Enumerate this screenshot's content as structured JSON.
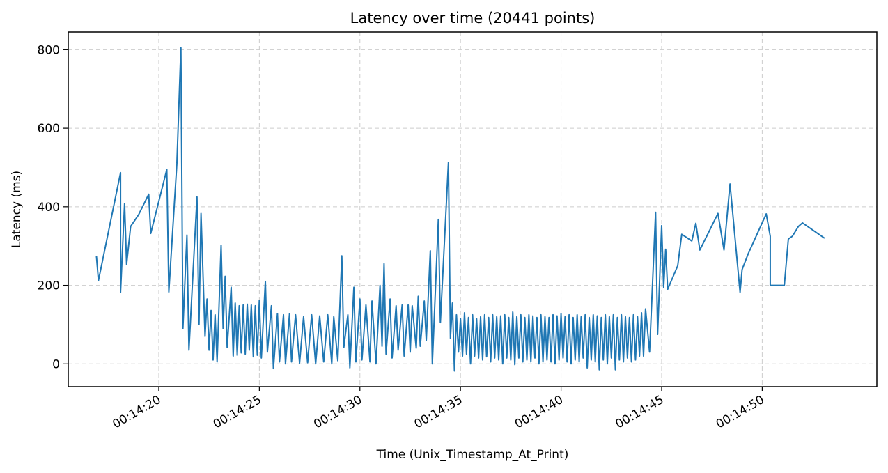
{
  "chart_data": {
    "type": "line",
    "title": "Latency over time (20441 points)",
    "xlabel": "Time (Unix_Timestamp_At_Print)",
    "ylabel": "Latency (ms)",
    "xlim": [
      "00:14:15.5",
      "00:14:55.7"
    ],
    "ylim": [
      -58,
      845
    ],
    "grid": true,
    "grid_style": "dashed",
    "line_color": "#1f77b4",
    "x_ticks": [
      {
        "t": "00:14:20",
        "label": "00:14:20"
      },
      {
        "t": "00:14:25",
        "label": "00:14:25"
      },
      {
        "t": "00:14:30",
        "label": "00:14:30"
      },
      {
        "t": "00:14:35",
        "label": "00:14:35"
      },
      {
        "t": "00:14:40",
        "label": "00:14:40"
      },
      {
        "t": "00:14:45",
        "label": "00:14:45"
      },
      {
        "t": "00:14:50",
        "label": "00:14:50"
      }
    ],
    "y_ticks": [
      {
        "v": 0,
        "label": "0"
      },
      {
        "v": 200,
        "label": "200"
      },
      {
        "v": 400,
        "label": "400"
      },
      {
        "v": 600,
        "label": "600"
      },
      {
        "v": 800,
        "label": "800"
      }
    ],
    "series": [
      {
        "points": [
          [
            "00:14:16.9",
            275
          ],
          [
            "00:14:17.0",
            212
          ],
          [
            "00:14:18.1",
            487
          ],
          [
            "00:14:18.1",
            182
          ],
          [
            "00:14:18.3",
            408
          ],
          [
            "00:14:18.4",
            253
          ],
          [
            "00:14:18.6",
            350
          ],
          [
            "00:14:19.0",
            380
          ],
          [
            "00:14:19.5",
            432
          ],
          [
            "00:14:19.6",
            332
          ],
          [
            "00:14:20.4",
            495
          ],
          [
            "00:14:20.5",
            183
          ],
          [
            "00:14:20.9",
            510
          ],
          [
            "00:14:21.1",
            805
          ],
          [
            "00:14:21.2",
            90
          ],
          [
            "00:14:21.4",
            328
          ],
          [
            "00:14:21.5",
            35
          ],
          [
            "00:14:21.9",
            425
          ],
          [
            "00:14:22.0",
            100
          ],
          [
            "00:14:22.1",
            383
          ],
          [
            "00:14:22.3",
            70
          ],
          [
            "00:14:22.4",
            165
          ],
          [
            "00:14:22.5",
            35
          ],
          [
            "00:14:22.6",
            136
          ],
          [
            "00:14:22.7",
            10
          ],
          [
            "00:14:22.8",
            125
          ],
          [
            "00:14:22.9",
            5
          ],
          [
            "00:14:23.1",
            302
          ],
          [
            "00:14:23.2",
            90
          ],
          [
            "00:14:23.3",
            223
          ],
          [
            "00:14:23.4",
            42
          ],
          [
            "00:14:23.6",
            195
          ],
          [
            "00:14:23.7",
            20
          ],
          [
            "00:14:23.8",
            155
          ],
          [
            "00:14:23.9",
            22
          ],
          [
            "00:14:24.0",
            148
          ],
          [
            "00:14:24.1",
            28
          ],
          [
            "00:14:24.2",
            150
          ],
          [
            "00:14:24.3",
            25
          ],
          [
            "00:14:24.4",
            152
          ],
          [
            "00:14:24.5",
            35
          ],
          [
            "00:14:24.6",
            150
          ],
          [
            "00:14:24.7",
            18
          ],
          [
            "00:14:24.8",
            148
          ],
          [
            "00:14:24.9",
            22
          ],
          [
            "00:14:25.0",
            162
          ],
          [
            "00:14:25.1",
            15
          ],
          [
            "00:14:25.3",
            210
          ],
          [
            "00:14:25.4",
            30
          ],
          [
            "00:14:25.6",
            148
          ],
          [
            "00:14:25.7",
            -12
          ],
          [
            "00:14:25.9",
            128
          ],
          [
            "00:14:26.0",
            5
          ],
          [
            "00:14:26.2",
            125
          ],
          [
            "00:14:26.3",
            0
          ],
          [
            "00:14:26.5",
            128
          ],
          [
            "00:14:26.6",
            5
          ],
          [
            "00:14:26.8",
            125
          ],
          [
            "00:14:27.0",
            2
          ],
          [
            "00:14:27.2",
            120
          ],
          [
            "00:14:27.4",
            3
          ],
          [
            "00:14:27.6",
            125
          ],
          [
            "00:14:27.8",
            0
          ],
          [
            "00:14:28.0",
            122
          ],
          [
            "00:14:28.2",
            5
          ],
          [
            "00:14:28.4",
            125
          ],
          [
            "00:14:28.6",
            0
          ],
          [
            "00:14:28.7",
            120
          ],
          [
            "00:14:28.9",
            8
          ],
          [
            "00:14:29.1",
            275
          ],
          [
            "00:14:29.2",
            42
          ],
          [
            "00:14:29.4",
            125
          ],
          [
            "00:14:29.5",
            -10
          ],
          [
            "00:14:29.7",
            195
          ],
          [
            "00:14:29.8",
            5
          ],
          [
            "00:14:30.0",
            165
          ],
          [
            "00:14:30.1",
            10
          ],
          [
            "00:14:30.3",
            150
          ],
          [
            "00:14:30.5",
            5
          ],
          [
            "00:14:30.6",
            160
          ],
          [
            "00:14:30.8",
            0
          ],
          [
            "00:14:31.0",
            200
          ],
          [
            "00:14:31.1",
            45
          ],
          [
            "00:14:31.2",
            255
          ],
          [
            "00:14:31.3",
            25
          ],
          [
            "00:14:31.5",
            165
          ],
          [
            "00:14:31.6",
            15
          ],
          [
            "00:14:31.8",
            148
          ],
          [
            "00:14:31.9",
            35
          ],
          [
            "00:14:32.1",
            150
          ],
          [
            "00:14:32.2",
            20
          ],
          [
            "00:14:32.4",
            150
          ],
          [
            "00:14:32.5",
            30
          ],
          [
            "00:14:32.6",
            148
          ],
          [
            "00:14:32.8",
            40
          ],
          [
            "00:14:32.9",
            172
          ],
          [
            "00:14:33.0",
            45
          ],
          [
            "00:14:33.2",
            160
          ],
          [
            "00:14:33.3",
            60
          ],
          [
            "00:14:33.5",
            288
          ],
          [
            "00:14:33.6",
            0
          ],
          [
            "00:14:33.9",
            368
          ],
          [
            "00:14:34.0",
            105
          ],
          [
            "00:14:34.4",
            513
          ],
          [
            "00:14:34.5",
            65
          ],
          [
            "00:14:34.6",
            155
          ],
          [
            "00:14:34.7",
            -18
          ],
          [
            "00:14:34.8",
            125
          ],
          [
            "00:14:34.9",
            30
          ],
          [
            "00:14:35.0",
            115
          ],
          [
            "00:14:35.1",
            20
          ],
          [
            "00:14:35.2",
            130
          ],
          [
            "00:14:35.3",
            25
          ],
          [
            "00:14:35.4",
            118
          ],
          [
            "00:14:35.5",
            0
          ],
          [
            "00:14:35.6",
            125
          ],
          [
            "00:14:35.7",
            20
          ],
          [
            "00:14:35.8",
            115
          ],
          [
            "00:14:35.9",
            15
          ],
          [
            "00:14:36.0",
            120
          ],
          [
            "00:14:36.1",
            10
          ],
          [
            "00:14:36.2",
            125
          ],
          [
            "00:14:36.3",
            18
          ],
          [
            "00:14:36.4",
            118
          ],
          [
            "00:14:36.5",
            5
          ],
          [
            "00:14:36.6",
            125
          ],
          [
            "00:14:36.7",
            15
          ],
          [
            "00:14:36.8",
            120
          ],
          [
            "00:14:36.9",
            10
          ],
          [
            "00:14:37.0",
            122
          ],
          [
            "00:14:37.1",
            0
          ],
          [
            "00:14:37.2",
            125
          ],
          [
            "00:14:37.3",
            15
          ],
          [
            "00:14:37.4",
            118
          ],
          [
            "00:14:37.5",
            10
          ],
          [
            "00:14:37.6",
            132
          ],
          [
            "00:14:37.7",
            -2
          ],
          [
            "00:14:37.8",
            120
          ],
          [
            "00:14:37.9",
            15
          ],
          [
            "00:14:38.0",
            125
          ],
          [
            "00:14:38.1",
            5
          ],
          [
            "00:14:38.2",
            118
          ],
          [
            "00:14:38.3",
            10
          ],
          [
            "00:14:38.4",
            125
          ],
          [
            "00:14:38.5",
            5
          ],
          [
            "00:14:38.6",
            122
          ],
          [
            "00:14:38.7",
            15
          ],
          [
            "00:14:38.8",
            118
          ],
          [
            "00:14:38.9",
            0
          ],
          [
            "00:14:39.0",
            125
          ],
          [
            "00:14:39.1",
            5
          ],
          [
            "00:14:39.2",
            120
          ],
          [
            "00:14:39.3",
            10
          ],
          [
            "00:14:39.4",
            118
          ],
          [
            "00:14:39.5",
            5
          ],
          [
            "00:14:39.6",
            125
          ],
          [
            "00:14:39.7",
            0
          ],
          [
            "00:14:39.8",
            122
          ],
          [
            "00:14:39.9",
            10
          ],
          [
            "00:14:40.0",
            128
          ],
          [
            "00:14:40.1",
            15
          ],
          [
            "00:14:40.2",
            120
          ],
          [
            "00:14:40.3",
            5
          ],
          [
            "00:14:40.4",
            125
          ],
          [
            "00:14:40.5",
            0
          ],
          [
            "00:14:40.6",
            118
          ],
          [
            "00:14:40.7",
            10
          ],
          [
            "00:14:40.8",
            125
          ],
          [
            "00:14:40.9",
            5
          ],
          [
            "00:14:41.0",
            120
          ],
          [
            "00:14:41.1",
            15
          ],
          [
            "00:14:41.2",
            125
          ],
          [
            "00:14:41.3",
            -10
          ],
          [
            "00:14:41.4",
            118
          ],
          [
            "00:14:41.5",
            10
          ],
          [
            "00:14:41.6",
            125
          ],
          [
            "00:14:41.7",
            5
          ],
          [
            "00:14:41.8",
            122
          ],
          [
            "00:14:41.9",
            -15
          ],
          [
            "00:14:42.0",
            118
          ],
          [
            "00:14:42.1",
            10
          ],
          [
            "00:14:42.2",
            125
          ],
          [
            "00:14:42.3",
            0
          ],
          [
            "00:14:42.4",
            120
          ],
          [
            "00:14:42.5",
            15
          ],
          [
            "00:14:42.6",
            125
          ],
          [
            "00:14:42.7",
            -15
          ],
          [
            "00:14:42.8",
            118
          ],
          [
            "00:14:42.9",
            10
          ],
          [
            "00:14:43.0",
            125
          ],
          [
            "00:14:43.1",
            5
          ],
          [
            "00:14:43.2",
            120
          ],
          [
            "00:14:43.3",
            15
          ],
          [
            "00:14:43.4",
            118
          ],
          [
            "00:14:43.5",
            5
          ],
          [
            "00:14:43.6",
            125
          ],
          [
            "00:14:43.7",
            10
          ],
          [
            "00:14:43.8",
            120
          ],
          [
            "00:14:43.9",
            20
          ],
          [
            "00:14:44.0",
            130
          ],
          [
            "00:14:44.1",
            20
          ],
          [
            "00:14:44.2",
            140
          ],
          [
            "00:14:44.4",
            30
          ],
          [
            "00:14:44.7",
            386
          ],
          [
            "00:14:44.8",
            75
          ],
          [
            "00:14:45.0",
            352
          ],
          [
            "00:14:45.1",
            195
          ],
          [
            "00:14:45.2",
            292
          ],
          [
            "00:14:45.3",
            190
          ],
          [
            "00:14:45.8",
            250
          ],
          [
            "00:14:46.0",
            330
          ],
          [
            "00:14:46.5",
            313
          ],
          [
            "00:14:46.7",
            358
          ],
          [
            "00:14:46.9",
            290
          ],
          [
            "00:14:47.8",
            383
          ],
          [
            "00:14:48.1",
            290
          ],
          [
            "00:14:48.4",
            458
          ],
          [
            "00:14:48.9",
            182
          ],
          [
            "00:14:49.0",
            240
          ],
          [
            "00:14:49.3",
            280
          ],
          [
            "00:14:50.2",
            382
          ],
          [
            "00:14:50.4",
            325
          ],
          [
            "00:14:50.4",
            200
          ],
          [
            "00:14:51.1",
            200
          ],
          [
            "00:14:51.3",
            318
          ],
          [
            "00:14:51.5",
            325
          ],
          [
            "00:14:51.8",
            350
          ],
          [
            "00:14:52.0",
            359
          ],
          [
            "00:14:53.1",
            320
          ]
        ]
      }
    ]
  }
}
